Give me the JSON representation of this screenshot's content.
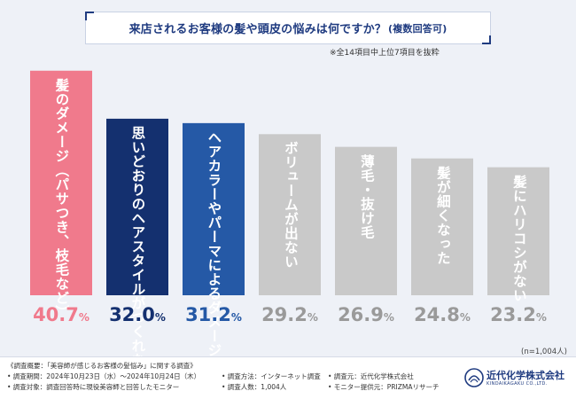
{
  "title": {
    "main": "来店されるお客様の髪や頭皮の悩みは何ですか？",
    "sub": "(複数回答可)"
  },
  "note": "※全14項目中上位7項目を抜粋",
  "n_label": "(n=1,004人)",
  "colors": {
    "pink": "#f07a8c",
    "navy": "#14306f",
    "blue": "#2559a6",
    "gray": "#c9c9c9",
    "pink_text": "#f07a8c",
    "navy_text": "#14306f",
    "blue_text": "#2559a6",
    "gray_text": "#9a9a9a"
  },
  "chart_data": {
    "type": "bar",
    "title": "来店されるお客様の髪や頭皮の悩みは何ですか？(複数回答可)",
    "ylabel": "",
    "xlabel": "",
    "ylim": [
      0,
      45
    ],
    "grid": false,
    "unit": "%",
    "categories": [
      "髪のダメージ（パサつき、枝毛など）",
      "思いどおりのヘアスタイルがつくれない",
      "ヘアカラーやパーマによるダメージ",
      "ボリュームが出ない",
      "薄毛・抜け毛",
      "髪が細くなった",
      "髪にハリコシがない"
    ],
    "label_lines": [
      [
        "髪のダメージ",
        "（パサつき、枝毛など）"
      ],
      [
        "思いどおりの",
        "ヘアスタイルがつくれない"
      ],
      [
        "ヘアカラーや",
        "パーマによるダメージ"
      ],
      [
        "ボリュームが出ない"
      ],
      [
        "薄毛・抜け毛"
      ],
      [
        "髪が細くなった"
      ],
      [
        "髪にハリコシがない"
      ]
    ],
    "values": [
      40.7,
      32.0,
      31.2,
      29.2,
      26.9,
      24.8,
      23.2
    ],
    "value_text": [
      "40.7",
      "32.0",
      "31.2",
      "29.2",
      "26.9",
      "24.8",
      "23.2"
    ],
    "bar_colors": [
      "pink",
      "navy",
      "blue",
      "gray",
      "gray",
      "gray",
      "gray"
    ]
  },
  "footer": {
    "line1": "《調査概要：「美容師が感じるお客様の髪悩み」に関する調査》",
    "period": "• 調査期間：2024年10月23日（水）～2024年10月24日（木）",
    "method": "• 調査方法：インターネット調査",
    "org": "• 調査元：近代化学株式会社",
    "target": "• 調査対象：調査回答時に現役美容師と回答したモニター",
    "count": "• 調査人数：1,004人",
    "provider": "• モニター提供元：PRIZMAリサーチ",
    "logo_name": "近代化学株式会社",
    "logo_sub": "KINDAIKAGAKU CO.,LTD."
  }
}
